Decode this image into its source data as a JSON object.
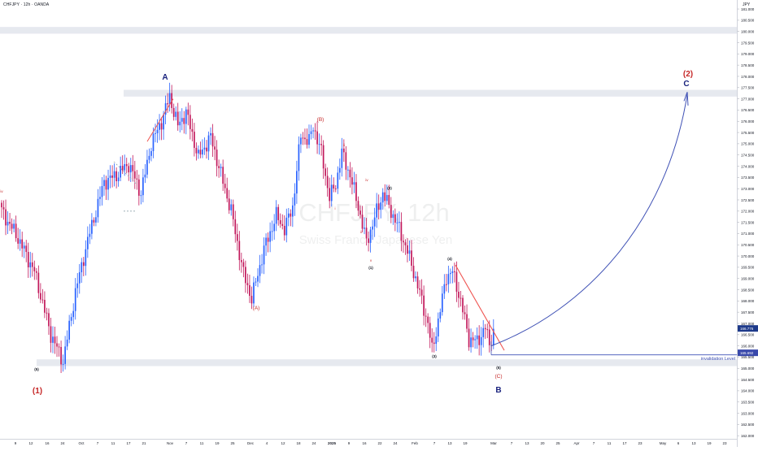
{
  "header": {
    "symbol_title": "CHFJPY · 12h · OANDA",
    "currency": "JPY"
  },
  "watermark": {
    "main": "CHFJPY, 12h",
    "sub": "Swiss Franc / Japanese Yen"
  },
  "colors": {
    "up_candle": "#2962ff",
    "down_candle": "#c2185b",
    "wave_red": "#c62828",
    "wave_navy": "#1a237e",
    "trendline": "#ef5350",
    "projection": "#3f51b5",
    "band": "#e6e9ef"
  },
  "chart_data": {
    "type": "candlestick",
    "title": "CHFJPY · 12h · OANDA",
    "ylabel": "JPY",
    "ylim": [
      161.5,
      181.4
    ],
    "grid": false,
    "y_ticks": [
      "181.000",
      "180.500",
      "180.000",
      "179.500",
      "179.000",
      "178.500",
      "178.000",
      "177.500",
      "177.000",
      "176.500",
      "176.000",
      "175.500",
      "175.000",
      "174.500",
      "174.000",
      "173.500",
      "173.000",
      "172.500",
      "172.000",
      "171.500",
      "171.000",
      "170.500",
      "170.000",
      "169.500",
      "169.000",
      "168.500",
      "168.000",
      "167.500",
      "167.000",
      "166.500",
      "166.000",
      "165.500",
      "165.000",
      "164.500",
      "164.000",
      "163.500",
      "163.000",
      "162.500",
      "162.000"
    ],
    "x_ticks": [
      "9",
      "12",
      "16",
      "24",
      "Oct",
      "7",
      "11",
      "17",
      "21",
      "Nov",
      "7",
      "11",
      "19",
      "25",
      "Dec",
      "4",
      "12",
      "18",
      "24",
      "2025",
      "9",
      "16",
      "22",
      "24",
      "Feb",
      "7",
      "13",
      "19",
      "Mar",
      "7",
      "13",
      "20",
      "25",
      "Apr",
      "7",
      "11",
      "17",
      "23",
      "May",
      "6",
      "13",
      "19",
      "23"
    ],
    "price_labels": {
      "current": "166.776",
      "invalidation": "165.692"
    },
    "swing_points": [
      {
        "x": 0,
        "y": 172.0
      },
      {
        "x": 8,
        "y": 170.8
      },
      {
        "x": 16,
        "y": 169.3
      },
      {
        "x": 24,
        "y": 166.5
      },
      {
        "x": 30,
        "y": 165.3
      },
      {
        "x": 36,
        "y": 168.4
      },
      {
        "x": 42,
        "y": 170.7
      },
      {
        "x": 50,
        "y": 173.3
      },
      {
        "x": 56,
        "y": 173.6
      },
      {
        "x": 62,
        "y": 174.1
      },
      {
        "x": 68,
        "y": 172.8
      },
      {
        "x": 73,
        "y": 175.0
      },
      {
        "x": 78,
        "y": 176.0
      },
      {
        "x": 82,
        "y": 177.1
      },
      {
        "x": 86,
        "y": 175.8
      },
      {
        "x": 90,
        "y": 176.4
      },
      {
        "x": 96,
        "y": 174.4
      },
      {
        "x": 102,
        "y": 175.3
      },
      {
        "x": 108,
        "y": 173.3
      },
      {
        "x": 112,
        "y": 172.0
      },
      {
        "x": 118,
        "y": 169.2
      },
      {
        "x": 122,
        "y": 168.1
      },
      {
        "x": 128,
        "y": 170.3
      },
      {
        "x": 134,
        "y": 171.8
      },
      {
        "x": 138,
        "y": 171.2
      },
      {
        "x": 142,
        "y": 172.2
      },
      {
        "x": 146,
        "y": 175.4
      },
      {
        "x": 150,
        "y": 175.1
      },
      {
        "x": 152,
        "y": 175.8
      },
      {
        "x": 156,
        "y": 174.6
      },
      {
        "x": 160,
        "y": 172.6
      },
      {
        "x": 163,
        "y": 173.2
      },
      {
        "x": 166,
        "y": 174.6
      },
      {
        "x": 170,
        "y": 173.6
      },
      {
        "x": 174,
        "y": 172.2
      },
      {
        "x": 178,
        "y": 170.6
      },
      {
        "x": 182,
        "y": 171.7
      },
      {
        "x": 186,
        "y": 172.8
      },
      {
        "x": 190,
        "y": 172.0
      },
      {
        "x": 194,
        "y": 171.2
      },
      {
        "x": 198,
        "y": 170.2
      },
      {
        "x": 202,
        "y": 169.0
      },
      {
        "x": 208,
        "y": 167.0
      },
      {
        "x": 210,
        "y": 165.8
      },
      {
        "x": 213,
        "y": 167.1
      },
      {
        "x": 217,
        "y": 169.1
      },
      {
        "x": 220,
        "y": 169.3
      },
      {
        "x": 224,
        "y": 168.0
      },
      {
        "x": 228,
        "y": 166.3
      },
      {
        "x": 232,
        "y": 166.2
      },
      {
        "x": 236,
        "y": 166.8
      },
      {
        "x": 238,
        "y": 166.1
      },
      {
        "x": 240,
        "y": 166.6
      }
    ],
    "wave_labels": {
      "red": [
        "(1)",
        "(A)",
        "(B)",
        "(C)",
        "(2)",
        "iv",
        "ii",
        "i",
        "ii",
        "v",
        "iv"
      ],
      "navy": [
        "A",
        "B",
        "C"
      ],
      "black": [
        "(5)",
        "(1)",
        "(2)",
        "(3)",
        "(4)",
        "(5)",
        "(8)"
      ]
    },
    "annotations": [
      "invalidation Level"
    ]
  }
}
